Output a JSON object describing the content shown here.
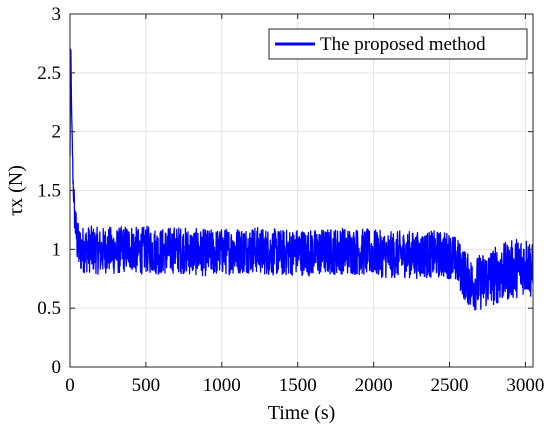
{
  "chart_data": {
    "type": "line",
    "title": "",
    "xlabel": "Time (s)",
    "ylabel": "τx (N)",
    "xlim": [
      0,
      3050
    ],
    "ylim": [
      0,
      3
    ],
    "xticks": [
      0,
      500,
      1000,
      1500,
      2000,
      2500,
      3000
    ],
    "yticks": [
      0,
      0.5,
      1,
      1.5,
      2,
      2.5,
      3
    ],
    "xtick_labels": [
      "0",
      "500",
      "1000",
      "1500",
      "2000",
      "2500",
      "3000"
    ],
    "ytick_labels": [
      "0",
      "0.5",
      "1",
      "1.5",
      "2",
      "2.5",
      "3"
    ],
    "grid": true,
    "legend": {
      "position": "top-right"
    },
    "series": [
      {
        "name": "The proposed method",
        "color": "#0000ff",
        "x": [
          0,
          5,
          10,
          20,
          30,
          40,
          50,
          60,
          80,
          100,
          150,
          200,
          250,
          300,
          350,
          400,
          450,
          500,
          600,
          700,
          800,
          900,
          1000,
          1100,
          1200,
          1300,
          1400,
          1500,
          1600,
          1700,
          1800,
          1900,
          2000,
          2100,
          2200,
          2300,
          2400,
          2500,
          2550,
          2600,
          2650,
          2700,
          2750,
          2800,
          2850,
          2900,
          2950,
          3000,
          3030,
          3050
        ],
        "y": [
          1.8,
          2.8,
          2.2,
          1.6,
          1.3,
          1.15,
          1.05,
          1.0,
          1.0,
          1.0,
          1.0,
          0.98,
          1.0,
          0.98,
          1.0,
          1.02,
          0.98,
          1.0,
          0.98,
          1.0,
          0.98,
          0.97,
          0.98,
          0.99,
          1.0,
          0.98,
          0.97,
          0.98,
          0.97,
          0.98,
          0.99,
          0.98,
          0.97,
          0.95,
          0.96,
          0.95,
          0.96,
          0.95,
          0.9,
          0.78,
          0.7,
          0.72,
          0.75,
          0.78,
          0.8,
          0.82,
          0.85,
          0.87,
          0.85,
          0.78
        ],
        "noise_amplitude": [
          0,
          0,
          0,
          0.12,
          0.15,
          0.18,
          0.2,
          0.2,
          0.2,
          0.2,
          0.2,
          0.2,
          0.2,
          0.2,
          0.2,
          0.2,
          0.2,
          0.2,
          0.2,
          0.2,
          0.2,
          0.2,
          0.2,
          0.2,
          0.2,
          0.2,
          0.2,
          0.2,
          0.2,
          0.2,
          0.2,
          0.2,
          0.2,
          0.2,
          0.2,
          0.2,
          0.2,
          0.2,
          0.2,
          0.22,
          0.22,
          0.24,
          0.25,
          0.25,
          0.25,
          0.25,
          0.26,
          0.25,
          0.25,
          0.25
        ]
      }
    ]
  }
}
